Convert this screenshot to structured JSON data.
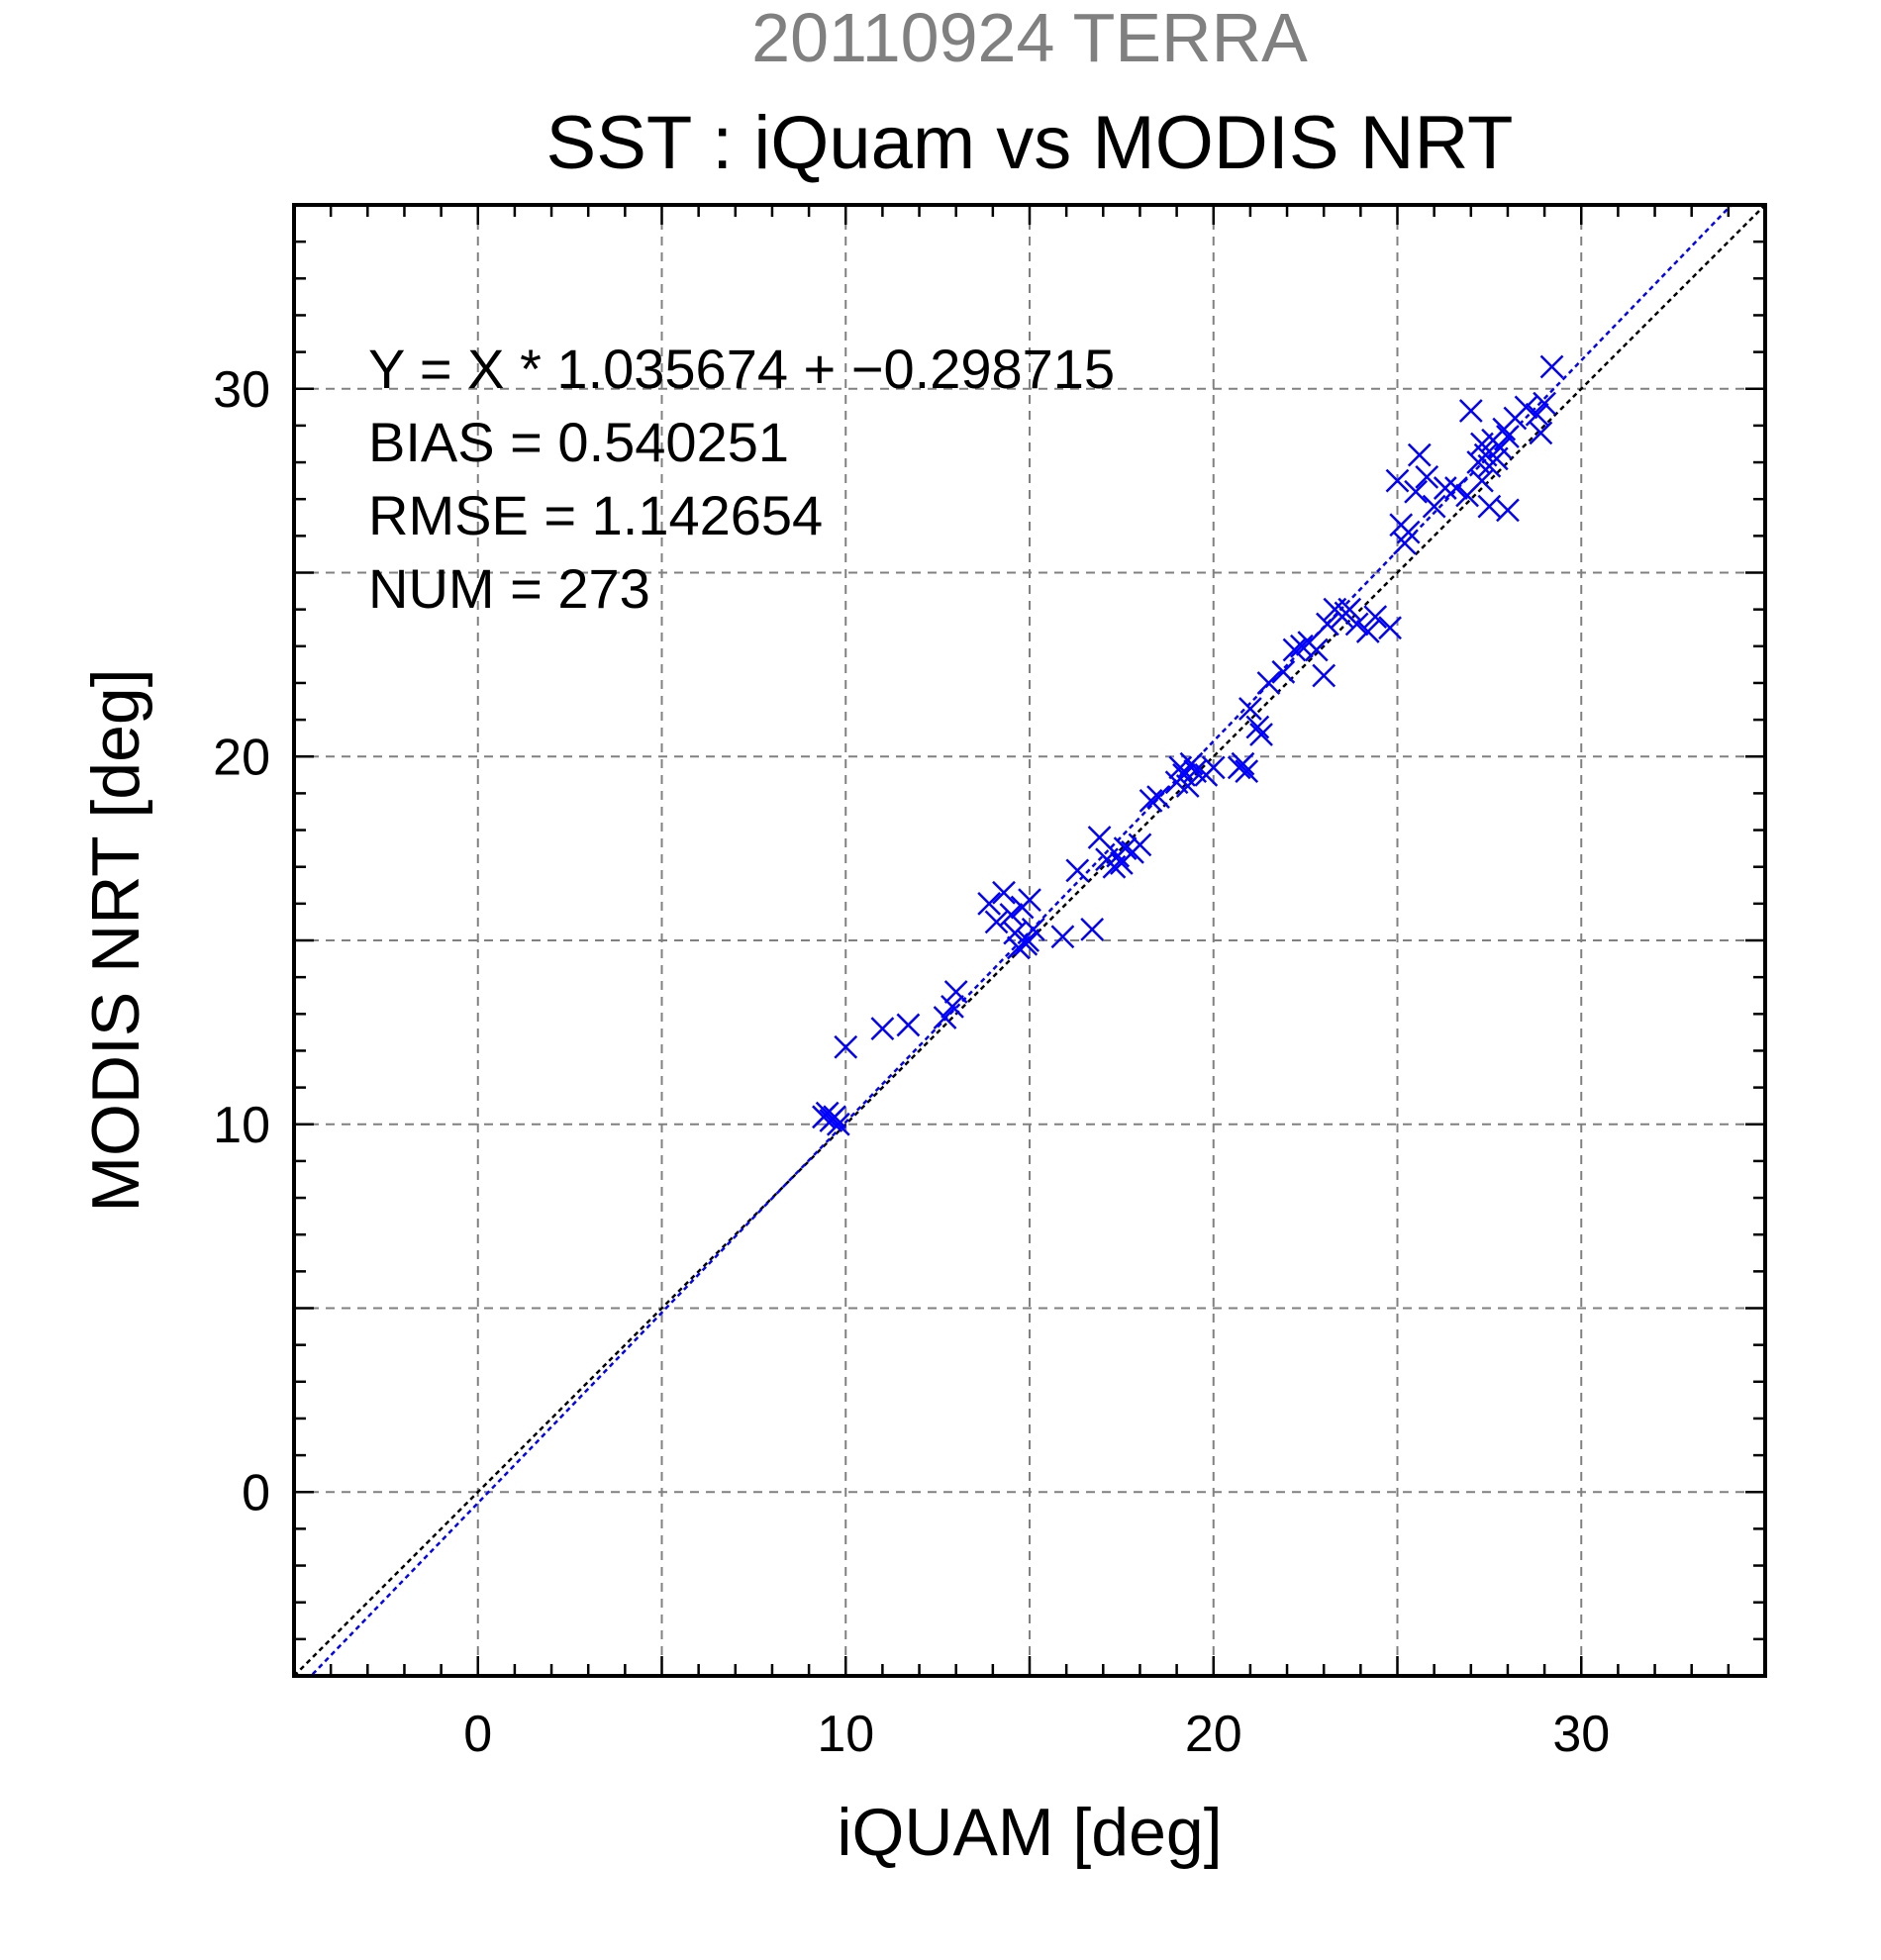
{
  "chart_data": {
    "type": "scatter",
    "date_label": "20110924 TERRA",
    "title": "SST : iQuam vs MODIS NRT",
    "xlabel": "iQUAM [deg]",
    "ylabel": "MODIS NRT [deg]",
    "xlim": [
      -5,
      35
    ],
    "ylim": [
      -5,
      35
    ],
    "xticks": [
      0,
      10,
      20,
      30
    ],
    "yticks": [
      0,
      10,
      20,
      30
    ],
    "minor_step": 1,
    "grid_step": 5,
    "grid": true,
    "colors": {
      "points": "#0000ff",
      "fit_line": "#0000ff",
      "identity_line": "#000000",
      "date_label": "#808080"
    },
    "stats": {
      "equation": "Y = X * 1.035674 + −0.298715",
      "bias": "BIAS = 0.540251",
      "rmse": "RMSE = 1.142654",
      "num": "NUM = 273"
    },
    "fit": {
      "slope": 1.035674,
      "intercept": -0.298715
    },
    "identity": {
      "slope": 1,
      "intercept": 0
    },
    "points": [
      [
        9.4,
        10.2
      ],
      [
        9.6,
        10.1
      ],
      [
        9.8,
        10.0
      ],
      [
        9.5,
        10.3
      ],
      [
        9.7,
        10.2
      ],
      [
        10.0,
        12.1
      ],
      [
        11.0,
        12.6
      ],
      [
        11.7,
        12.7
      ],
      [
        12.7,
        12.9
      ],
      [
        12.9,
        13.2
      ],
      [
        13.0,
        13.6
      ],
      [
        13.9,
        16.0
      ],
      [
        14.1,
        15.5
      ],
      [
        14.3,
        16.3
      ],
      [
        14.5,
        15.7
      ],
      [
        14.6,
        15.2
      ],
      [
        14.8,
        15.9
      ],
      [
        14.9,
        14.9
      ],
      [
        15.0,
        16.1
      ],
      [
        15.1,
        15.3
      ],
      [
        14.95,
        15.0
      ],
      [
        14.7,
        14.8
      ],
      [
        15.9,
        15.1
      ],
      [
        16.3,
        16.9
      ],
      [
        16.7,
        15.3
      ],
      [
        16.9,
        17.8
      ],
      [
        17.1,
        17.2
      ],
      [
        17.3,
        17.0
      ],
      [
        17.4,
        17.3
      ],
      [
        17.5,
        17.1
      ],
      [
        17.6,
        17.5
      ],
      [
        17.8,
        17.4
      ],
      [
        18.0,
        17.6
      ],
      [
        18.3,
        18.8
      ],
      [
        18.5,
        18.9
      ],
      [
        19.0,
        19.3
      ],
      [
        19.1,
        19.7
      ],
      [
        19.2,
        19.5
      ],
      [
        19.3,
        19.2
      ],
      [
        19.4,
        19.8
      ],
      [
        19.5,
        19.6
      ],
      [
        19.8,
        19.5
      ],
      [
        20.0,
        19.7
      ],
      [
        20.7,
        19.7
      ],
      [
        20.9,
        19.6
      ],
      [
        20.8,
        19.8
      ],
      [
        21.0,
        21.3
      ],
      [
        21.2,
        20.8
      ],
      [
        21.3,
        20.6
      ],
      [
        21.5,
        22.0
      ],
      [
        21.9,
        22.3
      ],
      [
        22.2,
        22.9
      ],
      [
        22.4,
        23.0
      ],
      [
        22.6,
        23.1
      ],
      [
        22.8,
        22.9
      ],
      [
        23.0,
        22.2
      ],
      [
        23.1,
        23.6
      ],
      [
        23.3,
        24.0
      ],
      [
        23.5,
        23.8
      ],
      [
        23.7,
        24.0
      ],
      [
        23.9,
        23.6
      ],
      [
        24.2,
        23.4
      ],
      [
        24.4,
        23.8
      ],
      [
        24.8,
        23.5
      ],
      [
        23.6,
        23.9
      ],
      [
        25.0,
        27.5
      ],
      [
        25.1,
        26.3
      ],
      [
        25.2,
        25.8
      ],
      [
        25.3,
        26.1
      ],
      [
        25.5,
        27.2
      ],
      [
        25.6,
        28.2
      ],
      [
        25.8,
        27.6
      ],
      [
        26.0,
        26.8
      ],
      [
        26.3,
        27.3
      ],
      [
        26.6,
        27.3
      ],
      [
        26.9,
        27.1
      ],
      [
        27.0,
        29.4
      ],
      [
        27.2,
        28.0
      ],
      [
        27.3,
        28.5
      ],
      [
        27.4,
        28.2
      ],
      [
        27.5,
        27.9
      ],
      [
        27.6,
        28.6
      ],
      [
        27.7,
        28.1
      ],
      [
        27.8,
        28.4
      ],
      [
        27.9,
        28.9
      ],
      [
        28.0,
        28.7
      ],
      [
        28.2,
        29.2
      ],
      [
        28.5,
        29.5
      ],
      [
        28.8,
        29.3
      ],
      [
        29.0,
        29.6
      ],
      [
        29.2,
        30.6
      ],
      [
        27.5,
        26.8
      ],
      [
        28.0,
        26.7
      ],
      [
        27.3,
        27.5
      ],
      [
        28.9,
        28.8
      ]
    ]
  }
}
